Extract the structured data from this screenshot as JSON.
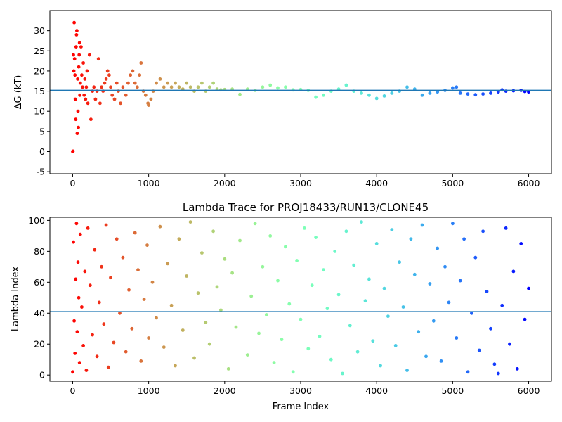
{
  "chart_data": [
    {
      "type": "scatter",
      "title": "",
      "xlabel": "",
      "ylabel": "ΔG (kT)",
      "xlim": [
        -300,
        6300
      ],
      "ylim": [
        -5.5,
        35
      ],
      "xticks": [
        0,
        1000,
        2000,
        3000,
        4000,
        5000,
        6000
      ],
      "yticks": [
        -5,
        0,
        5,
        10,
        15,
        20,
        25,
        30
      ],
      "hline": 15.2,
      "hline_color": "#1f77b4",
      "colormap": "rainbow (red at frame 0 → violet at frame 6000)",
      "series": [
        {
          "points": [
            [
              0,
              0
            ],
            [
              5,
              0.1
            ],
            [
              10,
              24
            ],
            [
              15,
              20
            ],
            [
              20,
              32
            ],
            [
              25,
              23
            ],
            [
              30,
              19
            ],
            [
              35,
              13
            ],
            [
              40,
              8
            ],
            [
              45,
              26
            ],
            [
              50,
              29
            ],
            [
              55,
              30
            ],
            [
              60,
              4.5
            ],
            [
              65,
              18
            ],
            [
              70,
              10
            ],
            [
              75,
              6
            ],
            [
              80,
              21
            ],
            [
              85,
              24
            ],
            [
              90,
              27
            ],
            [
              95,
              14
            ],
            [
              100,
              17
            ],
            [
              110,
              26
            ],
            [
              120,
              19
            ],
            [
              130,
              16
            ],
            [
              140,
              22
            ],
            [
              150,
              14
            ],
            [
              160,
              18
            ],
            [
              170,
              13
            ],
            [
              180,
              16
            ],
            [
              190,
              20
            ],
            [
              200,
              12
            ],
            [
              220,
              24
            ],
            [
              240,
              8
            ],
            [
              260,
              15
            ],
            [
              280,
              16
            ],
            [
              300,
              13
            ],
            [
              320,
              15
            ],
            [
              340,
              23
            ],
            [
              360,
              12
            ],
            [
              380,
              16
            ],
            [
              400,
              15
            ],
            [
              420,
              17
            ],
            [
              440,
              18
            ],
            [
              460,
              20
            ],
            [
              480,
              19
            ],
            [
              500,
              16
            ],
            [
              520,
              14
            ],
            [
              550,
              13
            ],
            [
              580,
              17
            ],
            [
              600,
              15
            ],
            [
              630,
              12
            ],
            [
              660,
              16
            ],
            [
              700,
              14
            ],
            [
              730,
              17
            ],
            [
              760,
              19
            ],
            [
              790,
              20
            ],
            [
              820,
              17
            ],
            [
              850,
              16
            ],
            [
              880,
              19
            ],
            [
              900,
              22
            ],
            [
              930,
              15
            ],
            [
              960,
              14
            ],
            [
              990,
              12
            ],
            [
              1000,
              11.5
            ],
            [
              1030,
              13
            ],
            [
              1060,
              15
            ],
            [
              1100,
              17
            ],
            [
              1150,
              18
            ],
            [
              1200,
              16
            ],
            [
              1250,
              17
            ],
            [
              1300,
              16
            ],
            [
              1350,
              17
            ],
            [
              1400,
              16
            ],
            [
              1450,
              15.5
            ],
            [
              1500,
              17
            ],
            [
              1550,
              16
            ],
            [
              1600,
              15
            ],
            [
              1650,
              16
            ],
            [
              1700,
              17
            ],
            [
              1750,
              15
            ],
            [
              1800,
              16
            ],
            [
              1850,
              17
            ],
            [
              1900,
              15.5
            ],
            [
              1950,
              15.3
            ],
            [
              2000,
              15.4
            ],
            [
              2100,
              15.5
            ],
            [
              2200,
              14.2
            ],
            [
              2300,
              15.5
            ],
            [
              2400,
              15.2
            ],
            [
              2500,
              16
            ],
            [
              2600,
              16.5
            ],
            [
              2700,
              15.8
            ],
            [
              2800,
              16
            ],
            [
              2900,
              15.3
            ],
            [
              3000,
              15.4
            ],
            [
              3100,
              15.2
            ],
            [
              3200,
              13.5
            ],
            [
              3300,
              14
            ],
            [
              3400,
              15
            ],
            [
              3500,
              15.5
            ],
            [
              3600,
              16.5
            ],
            [
              3700,
              15
            ],
            [
              3800,
              14.5
            ],
            [
              3900,
              14
            ],
            [
              4000,
              13.2
            ],
            [
              4100,
              13.8
            ],
            [
              4200,
              14.5
            ],
            [
              4300,
              15
            ],
            [
              4400,
              16
            ],
            [
              4500,
              15.5
            ],
            [
              4600,
              14
            ],
            [
              4700,
              14.5
            ],
            [
              4800,
              14.8
            ],
            [
              4900,
              15.2
            ],
            [
              5000,
              15.8
            ],
            [
              5050,
              16
            ],
            [
              5100,
              14.5
            ],
            [
              5200,
              14.3
            ],
            [
              5300,
              14.1
            ],
            [
              5400,
              14.3
            ],
            [
              5500,
              14.5
            ],
            [
              5600,
              14.8
            ],
            [
              5650,
              15.3
            ],
            [
              5700,
              15
            ],
            [
              5800,
              15.1
            ],
            [
              5900,
              15.2
            ],
            [
              5950,
              14.9
            ],
            [
              6000,
              14.8
            ]
          ]
        }
      ]
    },
    {
      "type": "scatter",
      "title": "Lambda Trace for PROJ18433/RUN13/CLONE45",
      "xlabel": "Frame Index",
      "ylabel": "Lambda Index",
      "xlim": [
        -300,
        6300
      ],
      "ylim": [
        -4,
        102
      ],
      "xticks": [
        0,
        1000,
        2000,
        3000,
        4000,
        5000,
        6000
      ],
      "yticks": [
        0,
        20,
        40,
        60,
        80,
        100
      ],
      "hline": 41,
      "hline_color": "#1f77b4",
      "colormap": "rainbow (red at frame 0 → violet at frame 6000)",
      "series": [
        {
          "points": [
            [
              0,
              2
            ],
            [
              10,
              86
            ],
            [
              20,
              35
            ],
            [
              30,
              14
            ],
            [
              40,
              62
            ],
            [
              50,
              98
            ],
            [
              60,
              28
            ],
            [
              70,
              73
            ],
            [
              80,
              50
            ],
            [
              90,
              8
            ],
            [
              100,
              91
            ],
            [
              120,
              44
            ],
            [
              140,
              19
            ],
            [
              160,
              67
            ],
            [
              180,
              3
            ],
            [
              200,
              95
            ],
            [
              230,
              58
            ],
            [
              260,
              26
            ],
            [
              290,
              81
            ],
            [
              320,
              12
            ],
            [
              350,
              47
            ],
            [
              380,
              70
            ],
            [
              410,
              33
            ],
            [
              440,
              97
            ],
            [
              470,
              5
            ],
            [
              500,
              63
            ],
            [
              540,
              21
            ],
            [
              580,
              88
            ],
            [
              620,
              40
            ],
            [
              660,
              76
            ],
            [
              700,
              15
            ],
            [
              740,
              55
            ],
            [
              780,
              30
            ],
            [
              820,
              92
            ],
            [
              860,
              68
            ],
            [
              900,
              9
            ],
            [
              940,
              49
            ],
            [
              980,
              84
            ],
            [
              1000,
              24
            ],
            [
              1050,
              60
            ],
            [
              1100,
              37
            ],
            [
              1150,
              96
            ],
            [
              1200,
              18
            ],
            [
              1250,
              72
            ],
            [
              1300,
              45
            ],
            [
              1350,
              6
            ],
            [
              1400,
              88
            ],
            [
              1450,
              29
            ],
            [
              1500,
              64
            ],
            [
              1550,
              99
            ],
            [
              1600,
              11
            ],
            [
              1650,
              53
            ],
            [
              1700,
              79
            ],
            [
              1750,
              34
            ],
            [
              1800,
              20
            ],
            [
              1850,
              93
            ],
            [
              1900,
              57
            ],
            [
              1950,
              42
            ],
            [
              2000,
              75
            ],
            [
              2050,
              4
            ],
            [
              2100,
              66
            ],
            [
              2150,
              31
            ],
            [
              2200,
              87
            ],
            [
              2300,
              13
            ],
            [
              2350,
              51
            ],
            [
              2400,
              98
            ],
            [
              2450,
              27
            ],
            [
              2500,
              70
            ],
            [
              2550,
              39
            ],
            [
              2600,
              90
            ],
            [
              2650,
              8
            ],
            [
              2700,
              61
            ],
            [
              2750,
              23
            ],
            [
              2800,
              83
            ],
            [
              2850,
              46
            ],
            [
              2900,
              2
            ],
            [
              2950,
              74
            ],
            [
              3000,
              36
            ],
            [
              3050,
              95
            ],
            [
              3100,
              17
            ],
            [
              3150,
              58
            ],
            [
              3200,
              89
            ],
            [
              3250,
              25
            ],
            [
              3300,
              68
            ],
            [
              3350,
              43
            ],
            [
              3400,
              10
            ],
            [
              3450,
              80
            ],
            [
              3500,
              52
            ],
            [
              3550,
              1
            ],
            [
              3600,
              93
            ],
            [
              3650,
              32
            ],
            [
              3700,
              71
            ],
            [
              3750,
              15
            ],
            [
              3800,
              99
            ],
            [
              3850,
              48
            ],
            [
              3900,
              62
            ],
            [
              3950,
              22
            ],
            [
              4000,
              85
            ],
            [
              4050,
              6
            ],
            [
              4100,
              56
            ],
            [
              4150,
              38
            ],
            [
              4200,
              94
            ],
            [
              4250,
              19
            ],
            [
              4300,
              73
            ],
            [
              4350,
              44
            ],
            [
              4400,
              3
            ],
            [
              4450,
              88
            ],
            [
              4500,
              65
            ],
            [
              4550,
              28
            ],
            [
              4600,
              97
            ],
            [
              4650,
              12
            ],
            [
              4700,
              59
            ],
            [
              4750,
              35
            ],
            [
              4800,
              82
            ],
            [
              4850,
              9
            ],
            [
              4900,
              70
            ],
            [
              4950,
              47
            ],
            [
              5000,
              98
            ],
            [
              5050,
              24
            ],
            [
              5100,
              61
            ],
            [
              5150,
              88
            ],
            [
              5200,
              2
            ],
            [
              5250,
              40
            ],
            [
              5300,
              76
            ],
            [
              5350,
              16
            ],
            [
              5400,
              93
            ],
            [
              5450,
              54
            ],
            [
              5500,
              30
            ],
            [
              5550,
              7
            ],
            [
              5600,
              1
            ],
            [
              5650,
              45
            ],
            [
              5700,
              95
            ],
            [
              5750,
              20
            ],
            [
              5800,
              67
            ],
            [
              5850,
              4
            ],
            [
              5900,
              85
            ],
            [
              5950,
              36
            ],
            [
              6000,
              56
            ]
          ]
        }
      ]
    }
  ]
}
